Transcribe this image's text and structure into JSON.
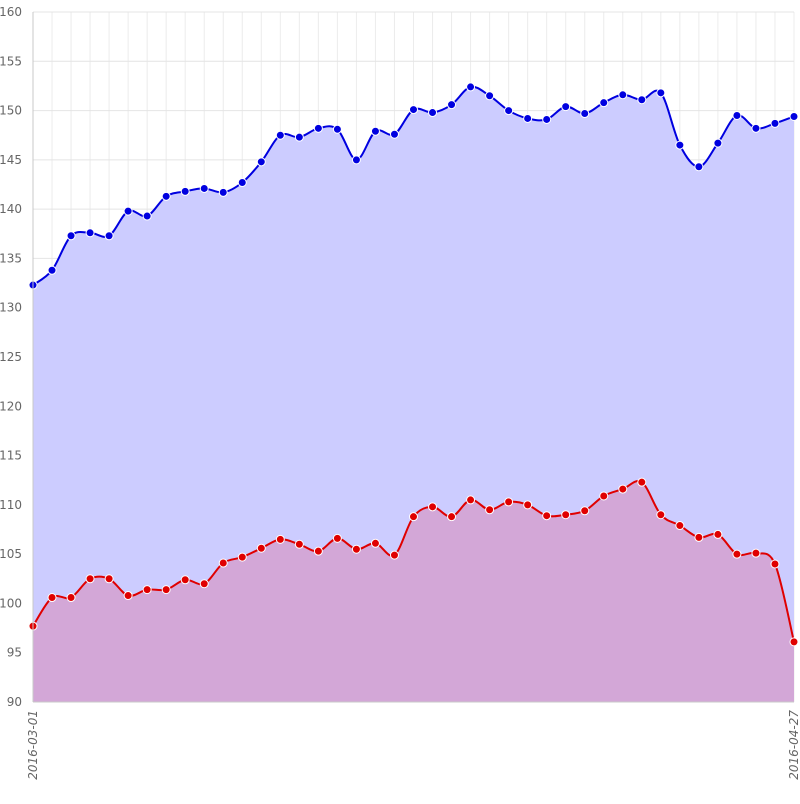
{
  "chart_data": {
    "type": "area",
    "x_start": "2016-03-01",
    "x_end": "2016-04-27",
    "x_tick_labels": [
      "2016-03-01",
      "2016-04-27"
    ],
    "ylim": [
      90,
      160
    ],
    "y_ticks": [
      90,
      95,
      100,
      105,
      110,
      115,
      120,
      125,
      130,
      135,
      140,
      145,
      150,
      155,
      160
    ],
    "grid": true,
    "legend": "none",
    "series": [
      {
        "color": "#0000e0",
        "fill": "#ccccff",
        "values": [
          132.3,
          133.8,
          137.3,
          137.6,
          137.3,
          139.8,
          139.3,
          141.3,
          141.8,
          142.1,
          141.7,
          142.7,
          144.8,
          147.5,
          147.3,
          148.2,
          148.1,
          145.0,
          147.9,
          147.6,
          150.1,
          149.8,
          150.6,
          152.4,
          151.5,
          150.0,
          149.2,
          149.1,
          150.4,
          149.7,
          150.8,
          151.6,
          151.1,
          151.8,
          146.5,
          144.3,
          146.7,
          149.5,
          148.2,
          148.7,
          149.4
        ]
      },
      {
        "color": "#e00000",
        "fill": "#d4a0d0",
        "values": [
          97.7,
          100.6,
          100.6,
          102.5,
          102.5,
          100.8,
          101.4,
          101.4,
          102.4,
          102.0,
          104.1,
          104.7,
          105.6,
          106.5,
          106.0,
          105.3,
          106.6,
          105.5,
          106.1,
          104.9,
          108.8,
          109.8,
          108.8,
          110.5,
          109.5,
          110.3,
          110.0,
          108.9,
          109.0,
          109.4,
          110.9,
          111.6,
          112.3,
          109.0,
          107.9,
          106.7,
          107.0,
          105.0,
          105.1,
          104.0,
          96.1
        ]
      }
    ]
  }
}
